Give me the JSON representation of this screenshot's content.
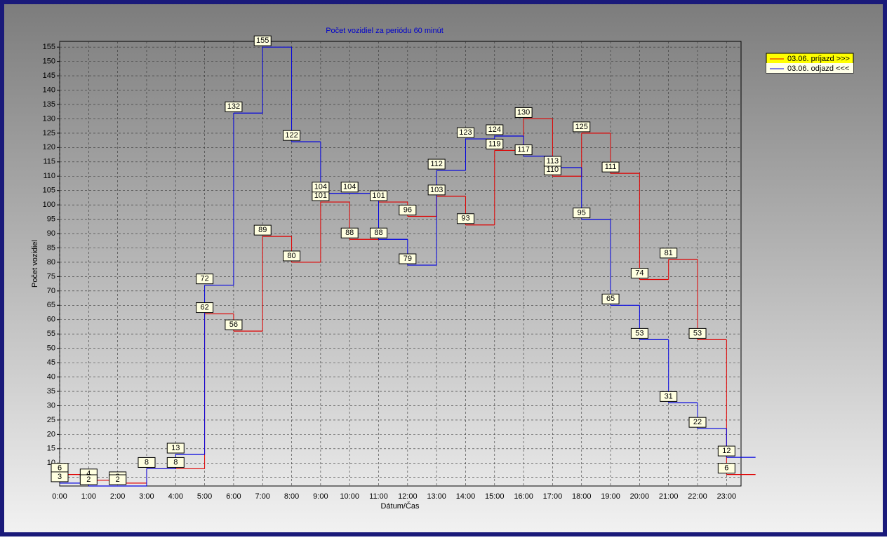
{
  "chart_data": {
    "type": "step",
    "title": "Počet vozidiel za periódu 60 minút",
    "xlabel": "Dátum/Čas",
    "ylabel": "Počet vozidiel",
    "categories": [
      "0:00",
      "1:00",
      "2:00",
      "3:00",
      "4:00",
      "5:00",
      "6:00",
      "7:00",
      "8:00",
      "9:00",
      "10:00",
      "11:00",
      "12:00",
      "13:00",
      "14:00",
      "15:00",
      "16:00",
      "17:00",
      "18:00",
      "19:00",
      "20:00",
      "21:00",
      "22:00",
      "23:00"
    ],
    "series": [
      {
        "name": "03.06.  príjazd >>>",
        "color": "#e00000",
        "values": [
          6,
          4,
          3,
          8,
          8,
          62,
          56,
          89,
          80,
          101,
          88,
          101,
          96,
          103,
          93,
          119,
          130,
          110,
          125,
          111,
          74,
          81,
          53,
          6
        ]
      },
      {
        "name": "03.06.  odjazd <<<",
        "color": "#0000e0",
        "values": [
          3,
          2,
          2,
          8,
          13,
          72,
          132,
          155,
          122,
          104,
          104,
          88,
          79,
          112,
          123,
          124,
          117,
          113,
          95,
          65,
          53,
          31,
          22,
          12
        ]
      }
    ],
    "ylim": [
      2,
      157
    ],
    "yticks": [
      5,
      10,
      15,
      20,
      25,
      30,
      35,
      40,
      45,
      50,
      55,
      60,
      65,
      70,
      75,
      80,
      85,
      90,
      95,
      100,
      105,
      110,
      115,
      120,
      125,
      130,
      135,
      140,
      145,
      150,
      155
    ],
    "grid": true,
    "legend": "right"
  }
}
